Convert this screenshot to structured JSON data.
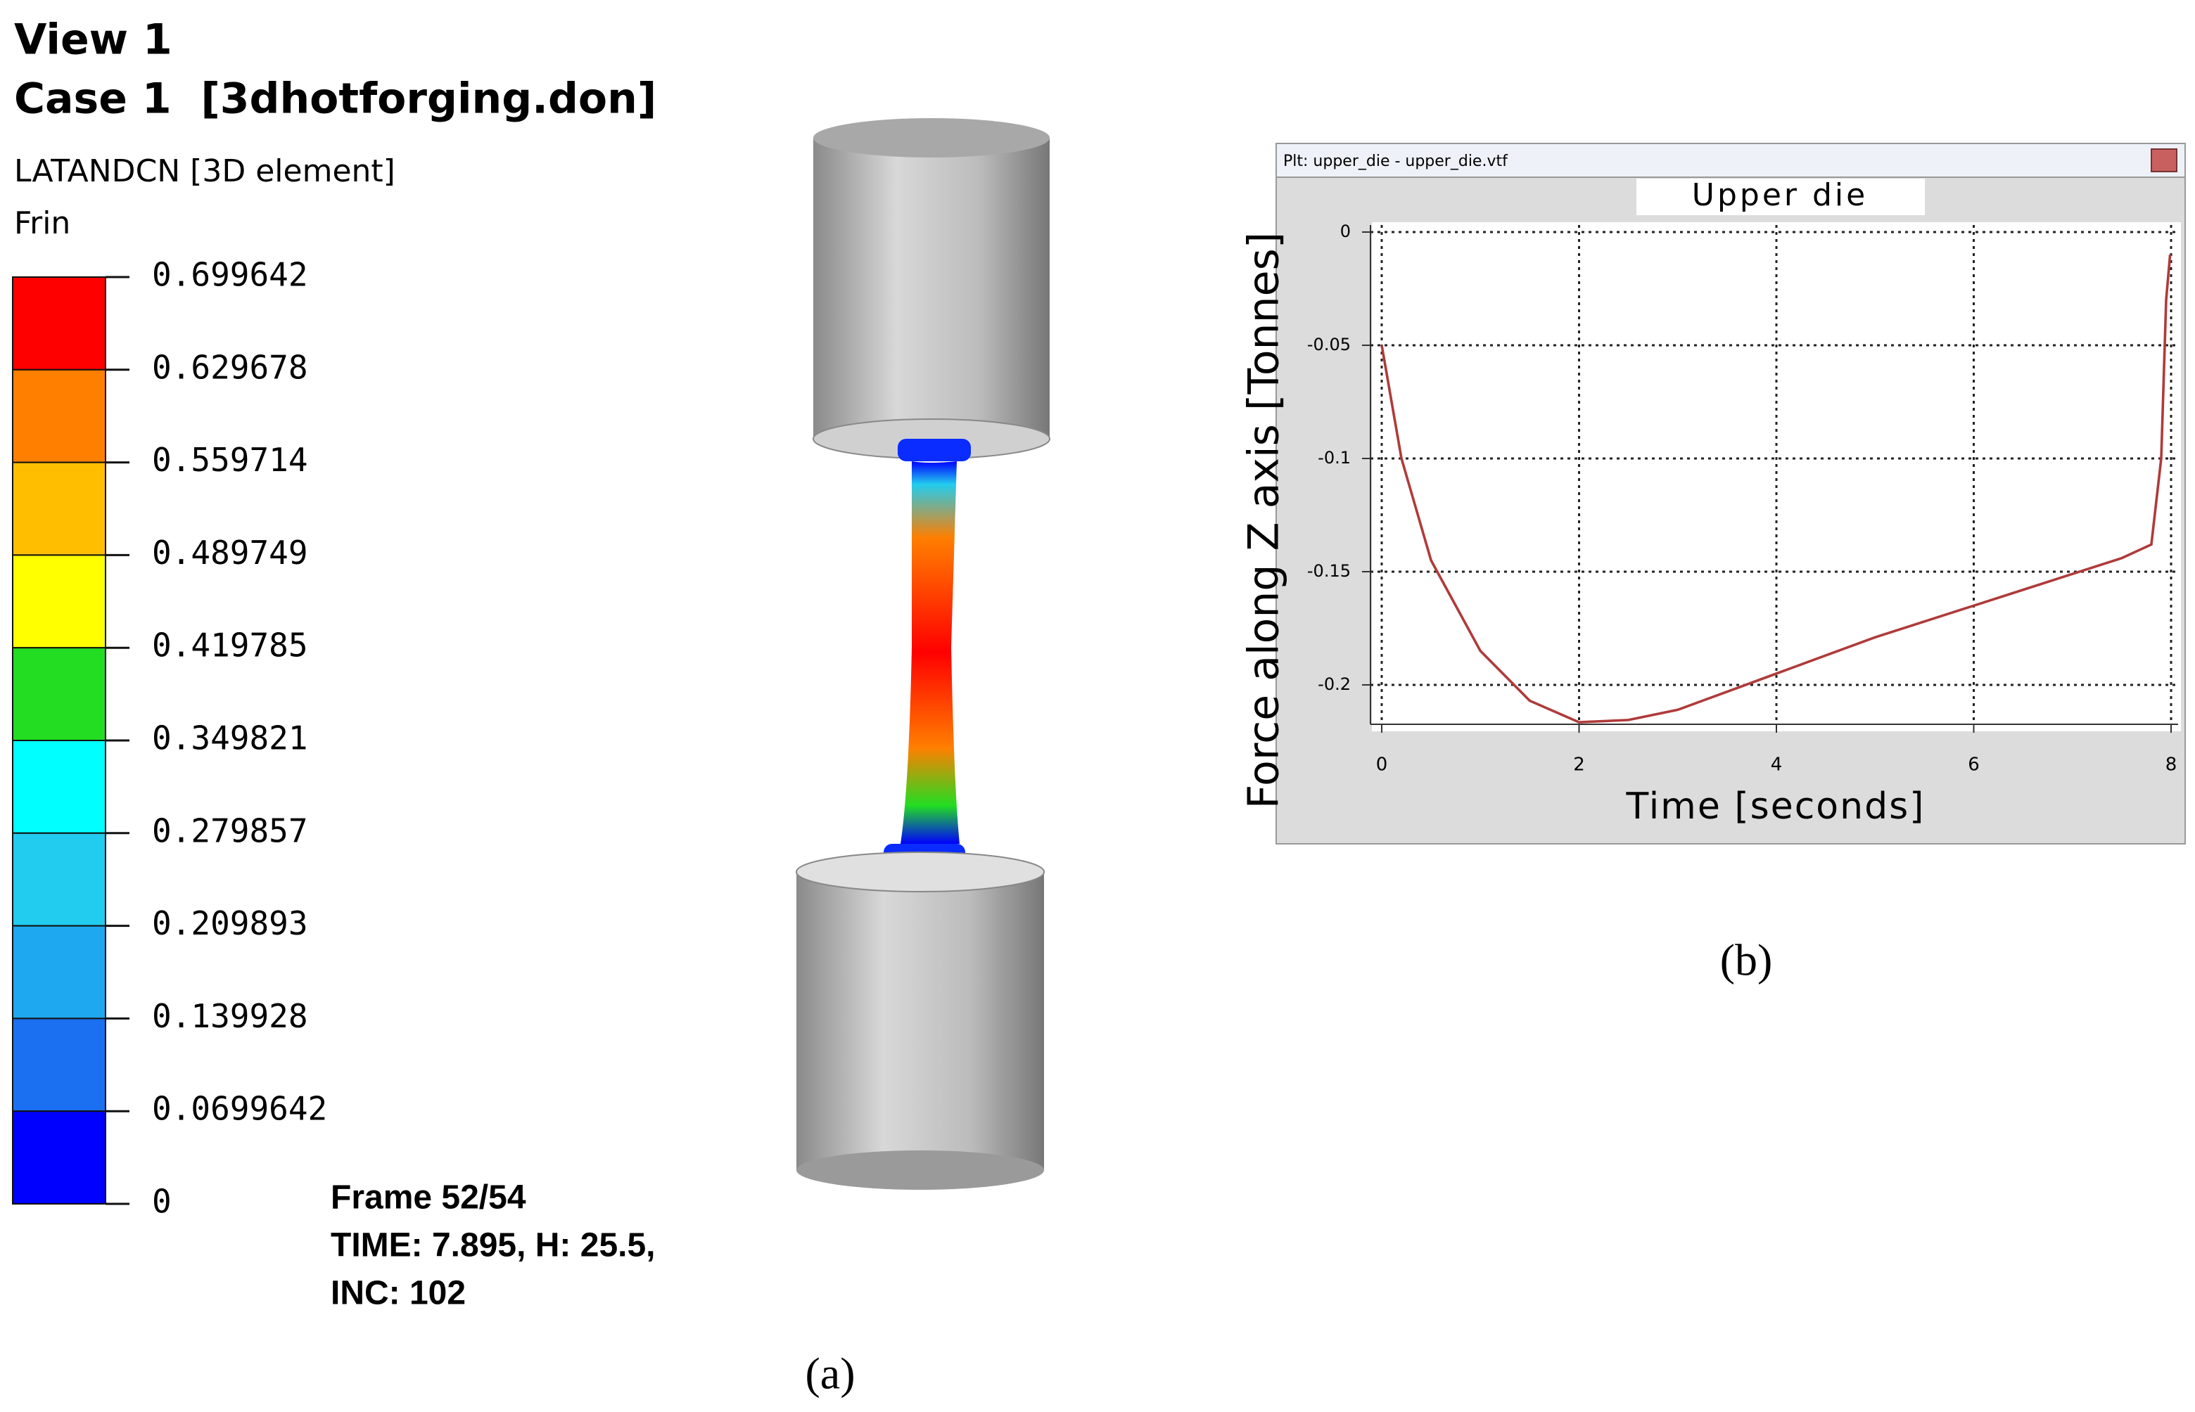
{
  "left_panel": {
    "view": "View 1",
    "case": "Case 1  [3dhotforging.don]",
    "variable": "LATANDCN [3D element]",
    "colorbar": {
      "title": "Frin",
      "ticks": [
        0.699642,
        0.629678,
        0.559714,
        0.489749,
        0.419785,
        0.349821,
        0.279857,
        0.209893,
        0.139928,
        0.0699642,
        0
      ],
      "colors": [
        "#ff0000",
        "#ff7f00",
        "#ffbf00",
        "#ffff00",
        "#22dd22",
        "#00ffff",
        "#22ccee",
        "#1ea8f0",
        "#1a70f0",
        "#0000ff"
      ]
    },
    "frame": "Frame 52/54",
    "time": "TIME: 7.895, H: 25.5,",
    "inc": "INC: 102",
    "caption": "(a)"
  },
  "chart_data": {
    "type": "line",
    "window_title": "Plt: upper_die - upper_die.vtf",
    "title": "Upper die",
    "xlabel": "Time [seconds]",
    "ylabel": "Force along Z axis [Tonnes]",
    "x": [
      0,
      0.2,
      0.5,
      1,
      1.5,
      2,
      2.5,
      3,
      3.5,
      4,
      4.5,
      5,
      5.5,
      6,
      6.5,
      7,
      7.5,
      7.8,
      7.9,
      7.95,
      7.99
    ],
    "values": [
      -0.05,
      -0.1,
      -0.145,
      -0.185,
      -0.207,
      -0.2165,
      -0.2155,
      -0.211,
      -0.203,
      -0.195,
      -0.187,
      -0.179,
      -0.172,
      -0.165,
      -0.158,
      -0.151,
      -0.144,
      -0.138,
      -0.1,
      -0.03,
      -0.01
    ],
    "color": "#b03a3a",
    "xlim": [
      0,
      8
    ],
    "xticks": [
      0,
      2,
      4,
      6,
      8
    ],
    "ylim": [
      -0.2174,
      0
    ],
    "yticks": [
      0,
      -0.05,
      -0.1,
      -0.15,
      -0.2
    ],
    "grid": true,
    "caption": "(b)"
  }
}
